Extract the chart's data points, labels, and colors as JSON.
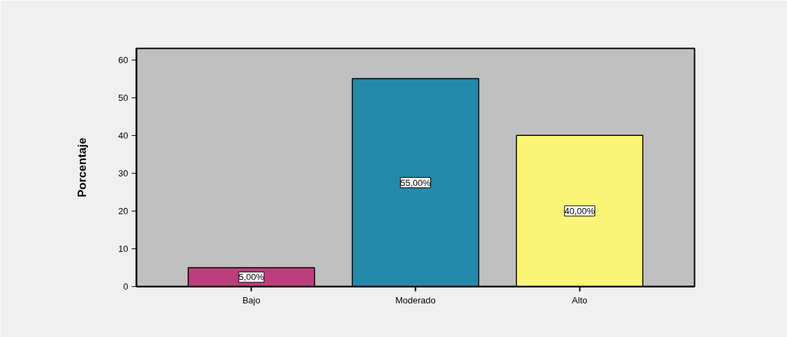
{
  "chart_data": {
    "type": "bar",
    "ylabel": "Porcentaje",
    "categories": [
      "Bajo",
      "Moderado",
      "Alto"
    ],
    "values": [
      5,
      55,
      40
    ],
    "colors": [
      "#bb3f7c",
      "#248aab",
      "#faf577"
    ],
    "value_labels": [
      "5,00%",
      "55,00%",
      "40,00%"
    ],
    "ylim": [
      0,
      63
    ],
    "yticks": [
      0,
      10,
      20,
      30,
      40,
      50,
      60
    ],
    "grid": false
  }
}
